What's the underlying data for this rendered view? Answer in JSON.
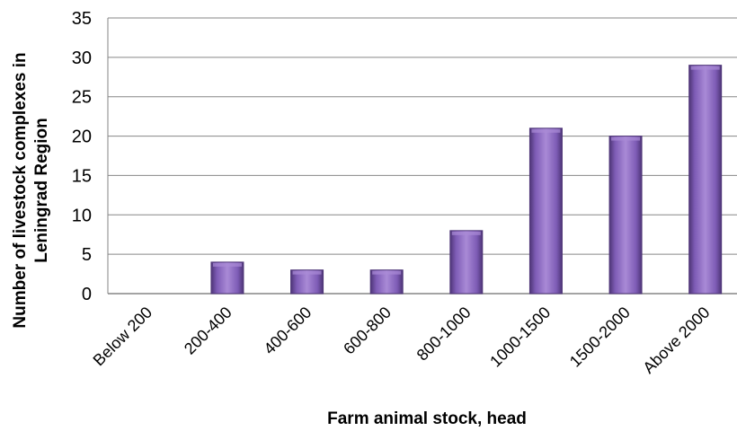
{
  "chart_data": {
    "type": "bar",
    "title": "",
    "categories": [
      "Below 200",
      "200-400",
      "400-600",
      "600-800",
      "800-1000",
      "1000-1500",
      "1500-2000",
      "Above 2000"
    ],
    "values": [
      0,
      4,
      3,
      3,
      8,
      21,
      20,
      29
    ],
    "xlabel": "Farm animal stock, head",
    "ylabel_line1": "Number of livestock complexes in",
    "ylabel_line2": "Leningrad Region",
    "ylim": [
      0,
      35
    ],
    "yticks": [
      "0",
      "5",
      "10",
      "15",
      "20",
      "25",
      "30",
      "35"
    ],
    "grid": true,
    "legend": "none",
    "colors": {
      "bar": "#7e5cb6",
      "bar_dark": "#4e3577",
      "bar_light": "#a98ad6",
      "grid": "#868686"
    }
  }
}
